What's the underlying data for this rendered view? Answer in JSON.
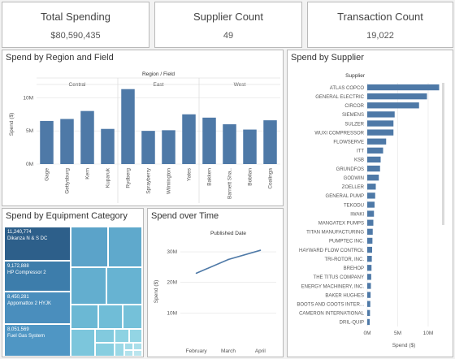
{
  "kpis": [
    {
      "title": "Total Spending",
      "value": "$80,590,435"
    },
    {
      "title": "Supplier Count",
      "value": "49"
    },
    {
      "title": "Transaction Count",
      "value": "19,022"
    }
  ],
  "panels": {
    "region_title": "Spend by Region and Field",
    "supplier_title": "Spend by Supplier",
    "equipment_title": "Spend by Equipment Category",
    "time_title": "Spend over Time"
  },
  "colors": {
    "primary": "#4e79a7",
    "treemap_dark": "#2d5f8a",
    "treemap_mid": "#5ba3c9",
    "treemap_light": "#8fd4e0"
  },
  "chart_data": [
    {
      "type": "bar",
      "title": "Spend by Region and Field",
      "header": "Region / Field",
      "ylabel": "Spend ($)",
      "yticks": [
        "10M",
        "5M",
        "0M"
      ],
      "ylim": [
        0,
        12000000
      ],
      "regions": [
        {
          "name": "Central",
          "fields": [
            "Gage",
            "Gettysburg",
            "Kern",
            "Kuparuk"
          ],
          "values": [
            6500000,
            6800000,
            8000000,
            5300000
          ]
        },
        {
          "name": "East",
          "fields": [
            "Rydberg",
            "Sprayberry",
            "Wilmington",
            "Yates"
          ],
          "values": [
            11300000,
            5000000,
            5100000,
            7500000
          ]
        },
        {
          "name": "West",
          "fields": [
            "Bakken",
            "Barnett Sha..",
            "Bobilan",
            "Coalinga"
          ],
          "values": [
            7000000,
            6000000,
            5200000,
            6600000
          ]
        }
      ]
    },
    {
      "type": "bar",
      "title": "Spend by Supplier",
      "header": "Supplier",
      "xlabel": "Spend ($)",
      "xticks": [
        "0M",
        "5M",
        "10M"
      ],
      "xlim": [
        0,
        12000000
      ],
      "categories": [
        "ATLAS COPCO",
        "GENERAL ELECTRIC",
        "CIRCOR",
        "SIEMENS",
        "SULZER",
        "WUXI COMPRESSOR",
        "FLOWSERVE",
        "ITT",
        "KSB",
        "GRUNDFOS",
        "GODWIN",
        "ZOELLER",
        "GENERAL PUMP",
        "TEKODU",
        "IWAKI",
        "MANGATEX PUMPS",
        "TITAN MANUFACTURING",
        "PUMPTEC INC.",
        "HAYWARD FLOW CONTROL",
        "TRI-ROTOR, INC.",
        "BREHOP",
        "THE TITUS COMPANY",
        "ENERGY MACHINERY, INC.",
        "BAKER HUGHES",
        "BOOTS AND COOTS INTER...",
        "CAMERON INTERNATIONAL",
        "DRIL-QUIP"
      ],
      "values": [
        11800000,
        9800000,
        8500000,
        4500000,
        4300000,
        4300000,
        3100000,
        2600000,
        2200000,
        2100000,
        1900000,
        1400000,
        1300000,
        1200000,
        1100000,
        1000000,
        900000,
        850000,
        800000,
        750000,
        700000,
        650000,
        600000,
        550000,
        500000,
        450000,
        400000
      ]
    },
    {
      "type": "heatmap",
      "title": "Spend by Equipment Category",
      "items": [
        {
          "label": "Dikanza N & S DC",
          "value": "11,240,774"
        },
        {
          "label": "HP Compressor 2",
          "value": "9,172,888"
        },
        {
          "label": "Appomattox 2 HYJK",
          "value": "8,450,281"
        },
        {
          "label": "Fuel Gas System",
          "value": "8,051,569"
        }
      ]
    },
    {
      "type": "line",
      "title": "Spend over Time",
      "header": "Published Date",
      "ylabel": "Spend ($)",
      "yticks": [
        "30M",
        "20M",
        "10M"
      ],
      "ylim": [
        0,
        34000000
      ],
      "categories": [
        "February",
        "March",
        "April"
      ],
      "values": [
        23000000,
        27500000,
        30500000
      ]
    }
  ]
}
